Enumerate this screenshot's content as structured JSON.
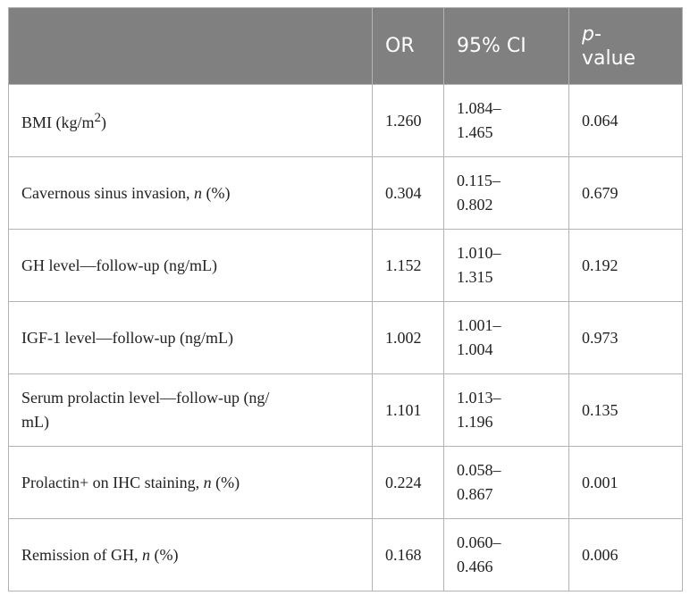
{
  "table": {
    "headers": {
      "variable": "",
      "or": "OR",
      "ci": "95% CI",
      "p_italic": "p",
      "p_rest": "-",
      "p_line2": "value"
    },
    "rows": [
      {
        "pre": "BMI (kg/m",
        "sup": "2",
        "post": ")",
        "italic": "",
        "after": "",
        "or": "1.260",
        "ci1": "1.084–",
        "ci2": "1.465",
        "p": "0.064"
      },
      {
        "pre": "Cavernous sinus invasion, ",
        "sup": "",
        "post": "",
        "italic": "n",
        "after": " (%)",
        "or": "0.304",
        "ci1": "0.115–",
        "ci2": "0.802",
        "p": "0.679"
      },
      {
        "pre": "GH level—follow-up (ng/mL)",
        "sup": "",
        "post": "",
        "italic": "",
        "after": "",
        "or": "1.152",
        "ci1": "1.010–",
        "ci2": "1.315",
        "p": "0.192"
      },
      {
        "pre": "IGF-1 level—follow-up (ng/mL)",
        "sup": "",
        "post": "",
        "italic": "",
        "after": "",
        "or": "1.002",
        "ci1": "1.001–",
        "ci2": "1.004",
        "p": "0.973"
      },
      {
        "pre": "Serum prolactin level—follow-up (ng/",
        "line2": "mL)",
        "sup": "",
        "post": "",
        "italic": "",
        "after": "",
        "or": "1.101",
        "ci1": "1.013–",
        "ci2": "1.196",
        "p": "0.135"
      },
      {
        "pre": "Prolactin+ on IHC staining, ",
        "sup": "",
        "post": "",
        "italic": "n",
        "after": " (%)",
        "or": "0.224",
        "ci1": "0.058–",
        "ci2": "0.867",
        "p": "0.001"
      },
      {
        "pre": "Remission of GH, ",
        "sup": "",
        "post": "",
        "italic": "n",
        "after": " (%)",
        "or": "0.168",
        "ci1": "0.060–",
        "ci2": "0.466",
        "p": "0.006"
      }
    ]
  }
}
